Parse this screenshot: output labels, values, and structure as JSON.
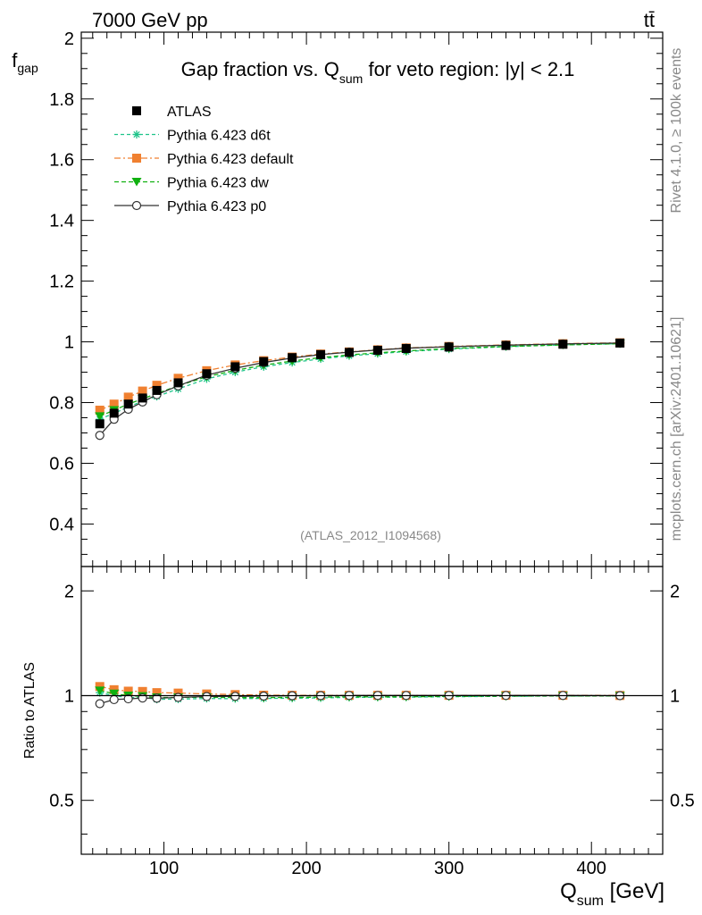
{
  "header": {
    "energy": "7000 GeV pp",
    "process": "tt̄"
  },
  "side_text": {
    "rivet": "Rivet 4.1.0, ≥ 100k events",
    "source": "mcplots.cern.ch [arXiv:2401.10621]"
  },
  "analysis_label": "(ATLAS_2012_I1094568)",
  "title": {
    "prefix": "Gap fraction vs. Q",
    "sub": "sum",
    "suffix": " for veto region: |y| < 2.1"
  },
  "chart_data": {
    "type": "line",
    "main": {
      "ylabel": "f",
      "ylabel_sub": "gap",
      "ylim": [
        0.26,
        2.02
      ],
      "yticks": [
        "0.4",
        "0.6",
        "0.8",
        "1",
        "1.2",
        "1.4",
        "1.6",
        "1.8",
        "2"
      ],
      "yticks_values": [
        0.4,
        0.6,
        0.8,
        1.0,
        1.2,
        1.4,
        1.6,
        1.8,
        2.0
      ]
    },
    "ratio": {
      "ylabel": "Ratio to ATLAS",
      "yticks": [
        "0.5",
        "1",
        "2"
      ],
      "yticks_values": [
        0.5,
        1.0,
        2.0
      ],
      "ylim": [
        0.35,
        2.35
      ]
    },
    "x": {
      "label": "Q",
      "label_sub": "sum",
      "label_unit": " [GeV]",
      "xlim": [
        42,
        450
      ],
      "ticks": [
        "100",
        "200",
        "300",
        "400"
      ],
      "ticks_values": [
        100,
        200,
        300,
        400
      ],
      "points": [
        55,
        65,
        75,
        85,
        95,
        110,
        130,
        150,
        170,
        190,
        210,
        230,
        250,
        270,
        300,
        340,
        380,
        420
      ]
    },
    "series": [
      {
        "name": "ATLAS",
        "color": "#000000",
        "marker": "square",
        "values": [
          0.73,
          0.765,
          0.795,
          0.815,
          0.84,
          0.865,
          0.895,
          0.918,
          0.935,
          0.948,
          0.958,
          0.965,
          0.972,
          0.978,
          0.983,
          0.988,
          0.992,
          0.996
        ],
        "ratio": [
          1.0,
          1.0,
          1.0,
          1.0,
          1.0,
          1.0,
          1.0,
          1.0,
          1.0,
          1.0,
          1.0,
          1.0,
          1.0,
          1.0,
          1.0,
          1.0,
          1.0,
          1.0
        ]
      },
      {
        "name": "Pythia 6.423 d6t",
        "color": "#1fc48a",
        "marker": "star",
        "dash": "4,3",
        "values": [
          0.745,
          0.765,
          0.785,
          0.805,
          0.82,
          0.845,
          0.878,
          0.9,
          0.918,
          0.932,
          0.944,
          0.954,
          0.961,
          0.968,
          0.976,
          0.984,
          0.99,
          0.994
        ],
        "ratio": [
          1.02,
          1.0,
          0.987,
          0.988,
          0.976,
          0.977,
          0.981,
          0.98,
          0.982,
          0.983,
          0.985,
          0.988,
          0.989,
          0.99,
          0.993,
          0.996,
          0.998,
          0.998
        ]
      },
      {
        "name": "Pythia 6.423 default",
        "color": "#f08030",
        "marker": "square",
        "dash": "7,3,2,3",
        "values": [
          0.775,
          0.795,
          0.818,
          0.838,
          0.857,
          0.88,
          0.905,
          0.924,
          0.938,
          0.95,
          0.96,
          0.967,
          0.974,
          0.98,
          0.985,
          0.99,
          0.994,
          0.997
        ],
        "ratio": [
          1.062,
          1.04,
          1.03,
          1.028,
          1.02,
          1.017,
          1.011,
          1.007,
          1.003,
          1.002,
          1.002,
          1.002,
          1.002,
          1.002,
          1.002,
          1.002,
          1.002,
          1.001
        ]
      },
      {
        "name": "Pythia 6.423 dw",
        "color": "#10b010",
        "marker": "triangle-down",
        "dash": "5,3",
        "values": [
          0.755,
          0.775,
          0.795,
          0.812,
          0.83,
          0.855,
          0.885,
          0.906,
          0.923,
          0.937,
          0.948,
          0.957,
          0.964,
          0.97,
          0.978,
          0.985,
          0.99,
          0.994
        ],
        "ratio": [
          1.034,
          1.013,
          1.0,
          0.996,
          0.988,
          0.988,
          0.989,
          0.987,
          0.987,
          0.988,
          0.99,
          0.992,
          0.992,
          0.992,
          0.995,
          0.997,
          0.998,
          0.998
        ]
      },
      {
        "name": "Pythia 6.423 p0",
        "color": "#333333",
        "marker": "circle-open",
        "dash": "",
        "values": [
          0.692,
          0.745,
          0.778,
          0.802,
          0.826,
          0.855,
          0.89,
          0.913,
          0.932,
          0.947,
          0.958,
          0.966,
          0.973,
          0.979,
          0.984,
          0.989,
          0.993,
          0.996
        ],
        "ratio": [
          0.948,
          0.974,
          0.979,
          0.984,
          0.983,
          0.988,
          0.994,
          0.995,
          0.997,
          0.999,
          1.0,
          1.001,
          1.001,
          1.001,
          1.001,
          1.001,
          1.001,
          1.0
        ]
      }
    ],
    "legend": {
      "position": "top-left",
      "entries": [
        "ATLAS",
        "Pythia 6.423 d6t",
        "Pythia 6.423 default",
        "Pythia 6.423 dw",
        "Pythia 6.423 p0"
      ]
    }
  }
}
